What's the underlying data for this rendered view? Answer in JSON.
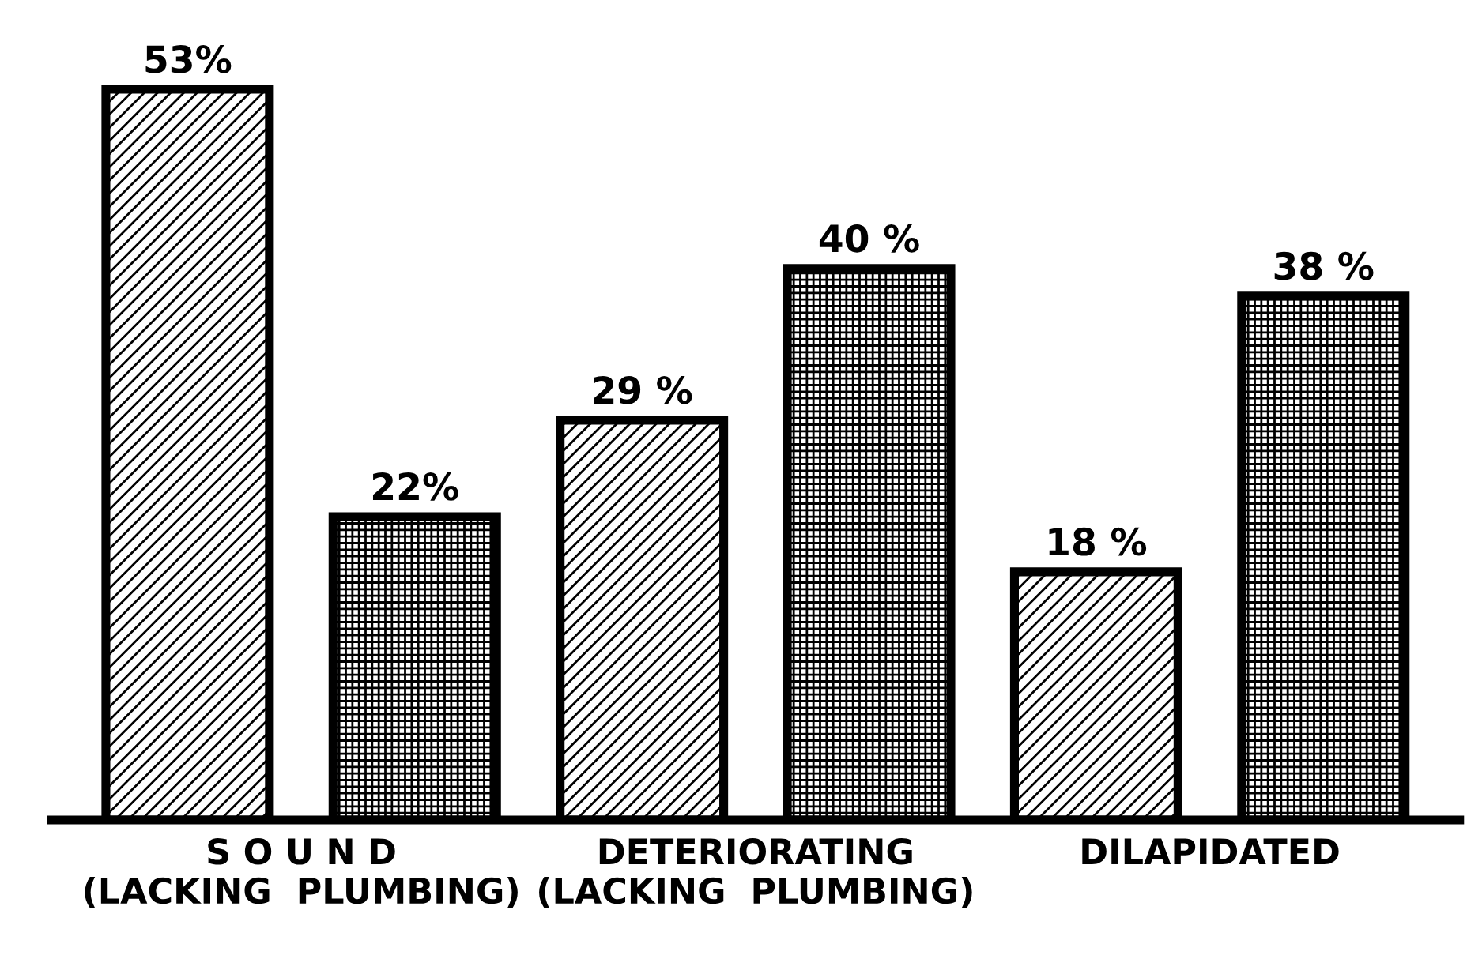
{
  "chart_data": {
    "type": "bar",
    "categories": [
      "S O U N D\n(LACKING  PLUMBING)",
      "DETERIORATING\n(LACKING  PLUMBING)",
      "DILAPIDATED"
    ],
    "series": [
      {
        "color": "#000000",
        "values": [
          53,
          29,
          18
        ],
        "value_labels": [
          "53%",
          "29 %",
          "18 %"
        ]
      },
      {
        "color": "#000000",
        "values": [
          22,
          40,
          38
        ],
        "value_labels": [
          "22%",
          "40 %",
          "38 %"
        ]
      }
    ],
    "tick_labels": "x",
    "grid": false,
    "legend": false
  }
}
